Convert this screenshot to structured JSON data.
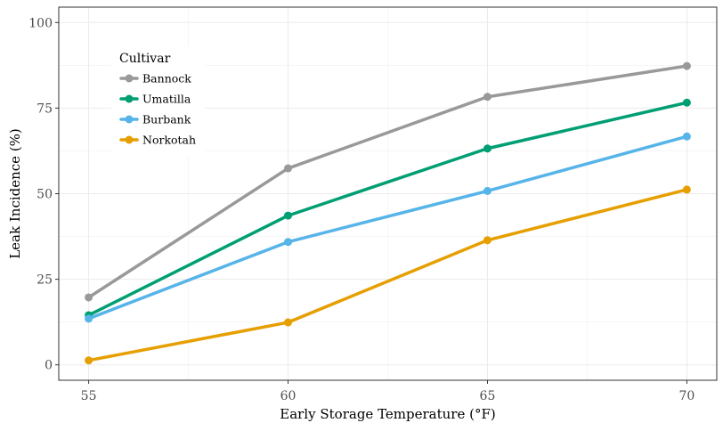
{
  "chart_data": {
    "type": "line",
    "title": "",
    "xlabel": "Early Storage Temperature (°F)",
    "ylabel": "Leak Incidence (%)",
    "x": [
      55,
      60,
      65,
      70
    ],
    "xticks": [
      "55",
      "60",
      "65",
      "70"
    ],
    "yticks": [
      "0",
      "25",
      "50",
      "75",
      "100"
    ],
    "xlim": [
      54.25,
      70.75
    ],
    "ylim": [
      -4.5,
      104.5
    ],
    "grid": true,
    "legend": {
      "title": "Cultivar",
      "placement": "top-left"
    },
    "series": [
      {
        "name": "Bannock",
        "color": "#999999",
        "values": [
          19.7,
          57.4,
          78.3,
          87.3
        ]
      },
      {
        "name": "Umatilla",
        "color": "#009e73",
        "values": [
          14.5,
          43.6,
          63.2,
          76.6
        ]
      },
      {
        "name": "Burbank",
        "color": "#56b4e9",
        "values": [
          13.5,
          35.9,
          50.8,
          66.7
        ]
      },
      {
        "name": "Norkotah",
        "color": "#e69f00",
        "values": [
          1.3,
          12.4,
          36.4,
          51.2
        ]
      }
    ]
  }
}
